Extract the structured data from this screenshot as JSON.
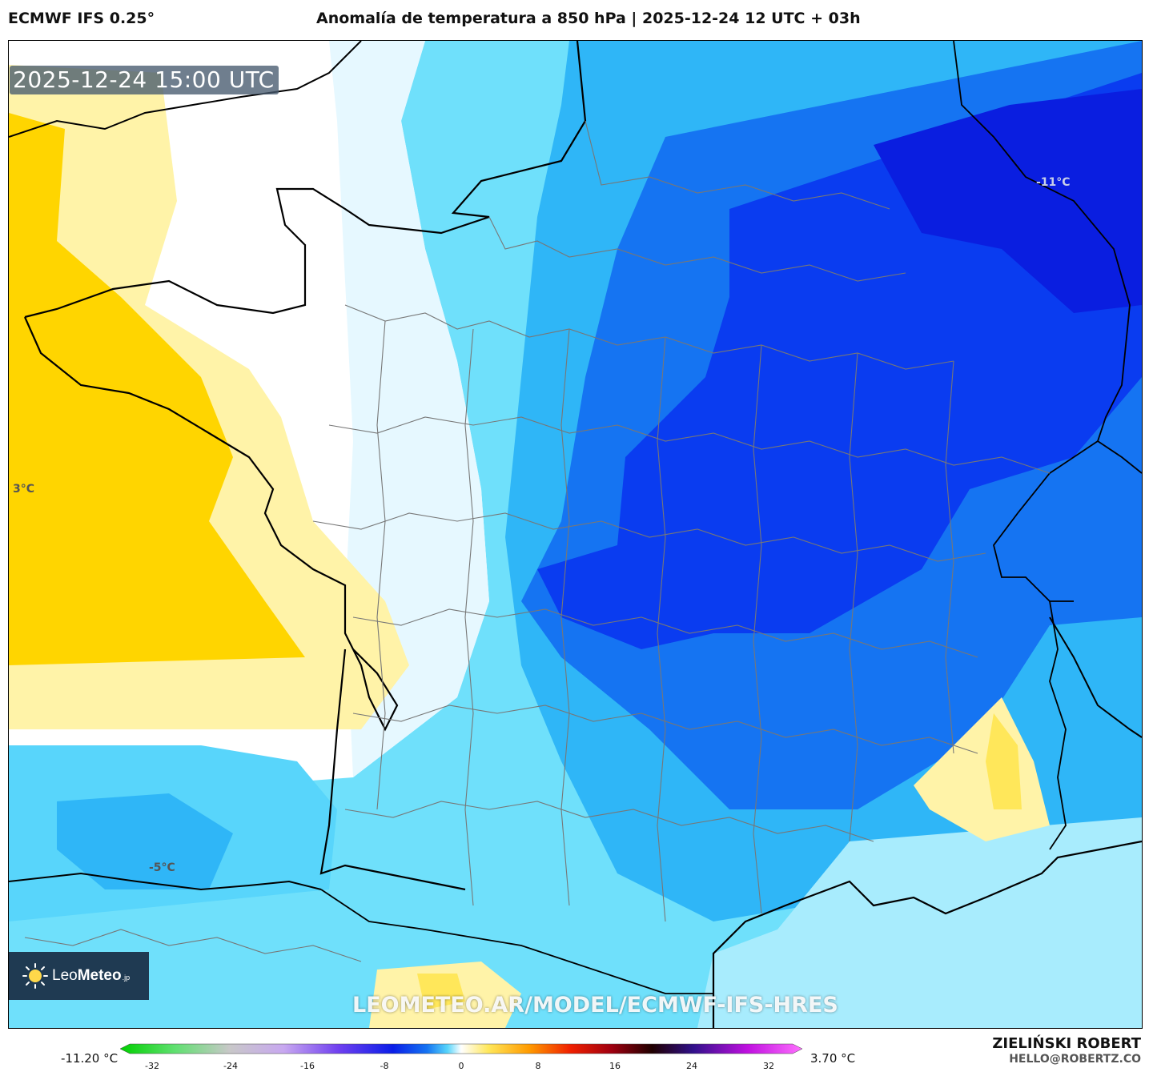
{
  "header": {
    "model": "ECMWF IFS 0.25°",
    "title": "Anomalía de temperatura a 850 hPa | 2025-12-24 12 UTC + 03h"
  },
  "map": {
    "valid_time": "2025-12-24 15:00 UTC",
    "region": "France",
    "labels": {
      "west": "3°C",
      "southwest": "-5°C",
      "northeast": "-11°C"
    },
    "watermark": "LEOMETEO.AR/MODEL/ECMWF-IFS-HRES",
    "colors": {
      "warm_strong": "#ffd500",
      "warm_light": "#fff3a8",
      "neutral": "#ffffff",
      "cool_light": "#a8ecfd",
      "cool": "#58d5fb",
      "cold": "#20a8f6",
      "colder": "#0a5ff0",
      "coldest": "#0a1ee8"
    }
  },
  "logo": {
    "brand_light": "Leo",
    "brand_bold": "Meteo",
    "suffix": ".jp"
  },
  "legend": {
    "min_label": "-11.20 °C",
    "max_label": "3.70 °C",
    "ticks": [
      "-32",
      "-24",
      "-16",
      "-8",
      "0",
      "8",
      "16",
      "24",
      "32"
    ]
  },
  "footer": {
    "author": "ZIELIŃSKI ROBERT",
    "email": "HELLO@ROBERTZ.CO"
  }
}
